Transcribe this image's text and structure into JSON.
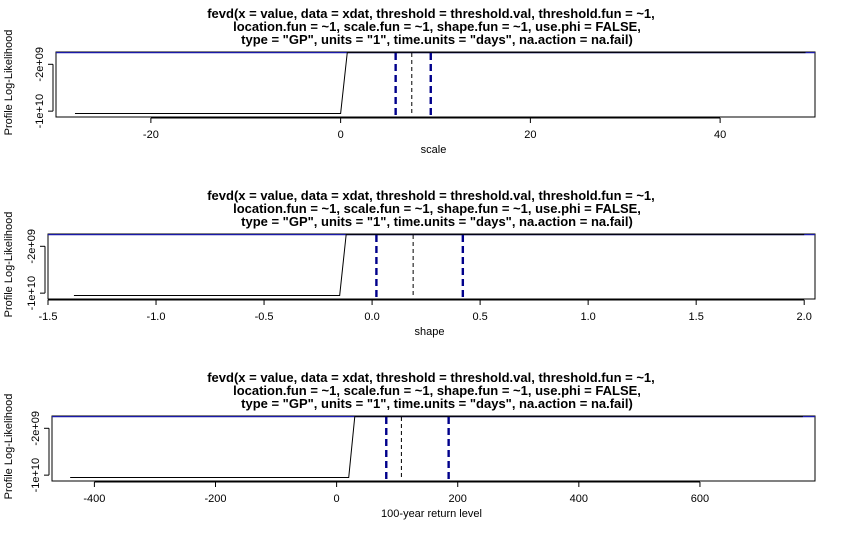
{
  "chart_data": [
    {
      "type": "line",
      "title_lines": [
        "fevd(x = value, data = xdat, threshold = threshold.val, threshold.fun = ~1,",
        "location.fun = ~1, scale.fun = ~1, shape.fun = ~1, use.phi = FALSE,",
        "type = \"GP\", units = \"1\", time.units = \"days\", na.action = na.fail)"
      ],
      "xlabel": "scale",
      "ylabel": "Profile Log-Likelihood",
      "xlim": [
        -30,
        50
      ],
      "ylim": [
        -11000000000.0,
        100000000.0
      ],
      "xticks": [
        -20,
        0,
        20,
        40
      ],
      "xtick_labels": [
        "-20",
        "0",
        "20",
        "40"
      ],
      "yticks": [
        -10000000000.0,
        -2000000000.0
      ],
      "ytick_labels": [
        "-1e+10",
        "-2e+09"
      ],
      "profile_x": [
        -28,
        0,
        0.7,
        49
      ],
      "profile_y": [
        -10400000000.0,
        -10400000000.0,
        0,
        0
      ],
      "hline_y": -10000000.0,
      "estimate": 7.5,
      "ci": [
        5.8,
        9.5
      ],
      "line_colors": {
        "profile": "#000000",
        "hline": "#1a1aa8",
        "ci": "#00008b",
        "estimate": "#000000"
      }
    },
    {
      "type": "line",
      "title_lines": [
        "fevd(x = value, data = xdat, threshold = threshold.val, threshold.fun = ~1,",
        "location.fun = ~1, scale.fun = ~1, shape.fun = ~1, use.phi = FALSE,",
        "type = \"GP\", units = \"1\", time.units = \"days\", na.action = na.fail)"
      ],
      "xlabel": "shape",
      "ylabel": "Profile Log-Likelihood",
      "xlim": [
        -1.5,
        2.05
      ],
      "ylim": [
        -11000000000.0,
        100000000.0
      ],
      "xticks": [
        -1.5,
        -1.0,
        -0.5,
        0.0,
        0.5,
        1.0,
        1.5,
        2.0
      ],
      "xtick_labels": [
        "-1.5",
        "-1.0",
        "-0.5",
        "0.0",
        "0.5",
        "1.0",
        "1.5",
        "2.0"
      ],
      "yticks": [
        -10000000000.0,
        -2000000000.0
      ],
      "ytick_labels": [
        "-1e+10",
        "-2e+09"
      ],
      "profile_x": [
        -1.38,
        -0.15,
        -0.12,
        2.0
      ],
      "profile_y": [
        -10400000000.0,
        -10400000000.0,
        0,
        0
      ],
      "hline_y": -10000000.0,
      "estimate": 0.19,
      "ci": [
        0.02,
        0.42
      ],
      "line_colors": {
        "profile": "#000000",
        "hline": "#1a1aa8",
        "ci": "#00008b",
        "estimate": "#000000"
      }
    },
    {
      "type": "line",
      "title_lines": [
        "fevd(x = value, data = xdat, threshold = threshold.val, threshold.fun = ~1,",
        "location.fun = ~1, scale.fun = ~1, shape.fun = ~1, use.phi = FALSE,",
        "type = \"GP\", units = \"1\", time.units = \"days\", na.action = na.fail)"
      ],
      "xlabel": "100-year return level",
      "ylabel": "Profile Log-Likelihood",
      "xlim": [
        -470,
        790
      ],
      "ylim": [
        -11000000000.0,
        100000000.0
      ],
      "xticks": [
        -400,
        -200,
        0,
        200,
        400,
        600
      ],
      "xtick_labels": [
        "-400",
        "-200",
        "0",
        "200",
        "400",
        "600"
      ],
      "yticks": [
        -10000000000.0,
        -2000000000.0
      ],
      "ytick_labels": [
        "-1e+10",
        "-2e+09"
      ],
      "profile_x": [
        -440,
        20,
        30,
        770
      ],
      "profile_y": [
        -10400000000.0,
        -10400000000.0,
        0,
        0
      ],
      "hline_y": -10000000.0,
      "estimate": 107,
      "ci": [
        82,
        185
      ],
      "line_colors": {
        "profile": "#000000",
        "hline": "#1a1aa8",
        "ci": "#00008b",
        "estimate": "#000000"
      }
    }
  ]
}
